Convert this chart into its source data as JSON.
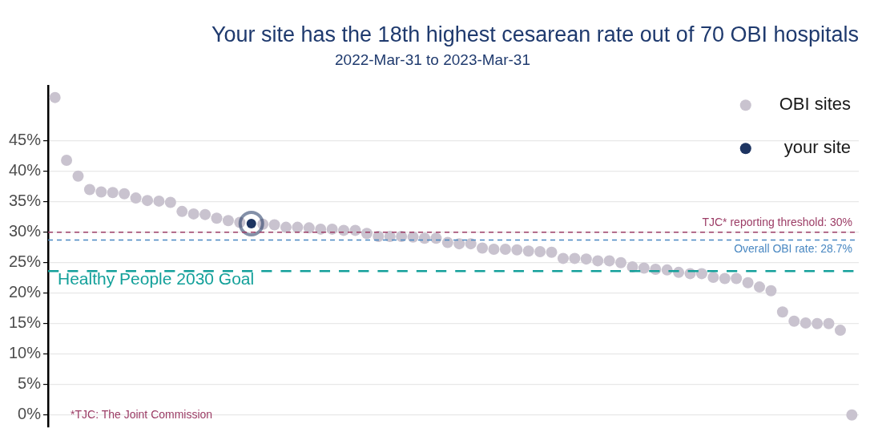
{
  "chart_data": {
    "type": "scatter",
    "title": "Your site has the 18th highest cesarean rate out of 70 OBI hospitals",
    "subtitle": "2022-Mar-31 to 2023-Mar-31",
    "categories": [
      null,
      null,
      null,
      null,
      null,
      null,
      null,
      null,
      null,
      null,
      null,
      null,
      null,
      null,
      null,
      null,
      null,
      null,
      null,
      null,
      null,
      null,
      null,
      null,
      null,
      null,
      null,
      null,
      null,
      null,
      null,
      null,
      null,
      null,
      null,
      null,
      null,
      null,
      null,
      null,
      null,
      null,
      null,
      null,
      null,
      null,
      null,
      null,
      null,
      null,
      null,
      null,
      null,
      null,
      null,
      null,
      null,
      null,
      null,
      null,
      null,
      null,
      null,
      null,
      null,
      null,
      null,
      null,
      null,
      null
    ],
    "series": [
      {
        "name": "OBI sites",
        "color": "#c9c3cf",
        "values": [
          52.1,
          41.8,
          39.2,
          37.0,
          36.6,
          36.5,
          36.3,
          35.6,
          35.2,
          35.1,
          34.9,
          33.4,
          33.0,
          32.9,
          32.3,
          31.9,
          31.6,
          null,
          31.3,
          31.2,
          30.8,
          30.8,
          30.7,
          30.5,
          30.5,
          30.3,
          30.3,
          29.8,
          29.3,
          29.3,
          29.3,
          29.2,
          29.0,
          29.0,
          28.3,
          28.1,
          28.1,
          27.4,
          27.2,
          27.2,
          27.1,
          26.9,
          26.8,
          26.7,
          25.7,
          25.7,
          25.6,
          25.3,
          25.3,
          25.0,
          24.3,
          24.1,
          23.9,
          23.8,
          23.4,
          23.2,
          23.2,
          22.6,
          22.4,
          22.4,
          21.7,
          21.0,
          20.4,
          16.9,
          15.4,
          15.1,
          15.0,
          15.0,
          13.9,
          0
        ]
      },
      {
        "name": "your site",
        "color": "#1d3461",
        "values": [
          null,
          null,
          null,
          null,
          null,
          null,
          null,
          null,
          null,
          null,
          null,
          null,
          null,
          null,
          null,
          null,
          null,
          31.4,
          null,
          null,
          null,
          null,
          null,
          null,
          null,
          null,
          null,
          null,
          null,
          null,
          null,
          null,
          null,
          null,
          null,
          null,
          null,
          null,
          null,
          null,
          null,
          null,
          null,
          null,
          null,
          null,
          null,
          null,
          null,
          null,
          null,
          null,
          null,
          null,
          null,
          null,
          null,
          null,
          null,
          null,
          null,
          null,
          null,
          null,
          null,
          null,
          null,
          null,
          null,
          null
        ]
      }
    ],
    "ylim": [
      -2,
      54
    ],
    "yticks": [
      {
        "value": 0,
        "label": "0%"
      },
      {
        "value": 5,
        "label": "5%"
      },
      {
        "value": 10,
        "label": "10%"
      },
      {
        "value": 15,
        "label": "15%"
      },
      {
        "value": 20,
        "label": "20%"
      },
      {
        "value": 25,
        "label": "25%"
      },
      {
        "value": 30,
        "label": "30%"
      },
      {
        "value": 35,
        "label": "35%"
      },
      {
        "value": 40,
        "label": "40%"
      },
      {
        "value": 45,
        "label": "45%"
      }
    ],
    "ref_lines": [
      {
        "axis": "y",
        "value": 30,
        "label": "TJC* reporting threshold: 30%",
        "color": "#9c3d66",
        "line_style": "dashed"
      },
      {
        "axis": "y",
        "value": 28.7,
        "label": "Overall OBI rate: 28.7%",
        "color": "#4a88c2",
        "line_style": "dashed"
      },
      {
        "axis": "y",
        "value": 23.6,
        "label": "Healthy People 2030 Goal",
        "color": "#13a09a",
        "line_style": "dashed"
      }
    ],
    "annotations": [
      "*TJC: The Joint Commission"
    ],
    "grid": "y",
    "legend": "top right",
    "marker": "circle",
    "tick_labels": "y"
  }
}
